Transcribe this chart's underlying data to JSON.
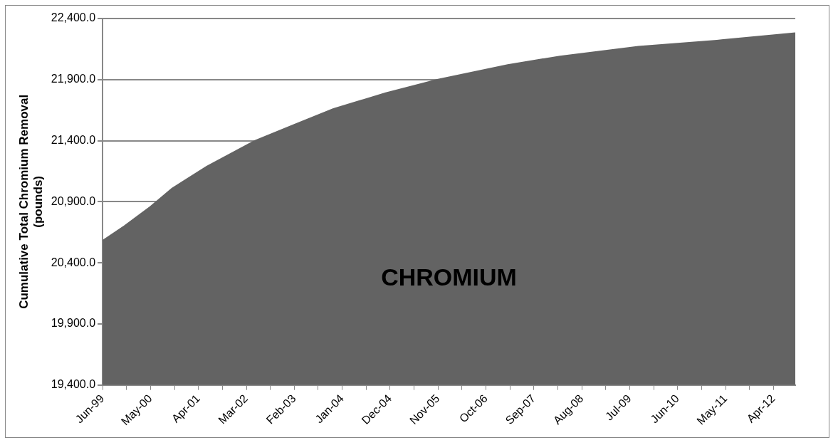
{
  "chart_data": {
    "type": "area",
    "ylabel": "Cumulative Total Chromium Removal\n(pounds)",
    "x": [
      "1999-06",
      "1999-11",
      "2000-05",
      "2000-10",
      "2001-06",
      "2002-05",
      "2003-02",
      "2003-11",
      "2004-11",
      "2005-11",
      "2007-03",
      "2008-03",
      "2009-09",
      "2011-03",
      "2012-09"
    ],
    "series": [
      {
        "name": "CHROMIUM",
        "color": "#636363",
        "values": [
          20580,
          20700,
          20860,
          21010,
          21190,
          21400,
          21530,
          21660,
          21790,
          21900,
          22020,
          22090,
          22170,
          22220,
          22280
        ]
      }
    ],
    "xlim": [
      "1999-06",
      "2012-09"
    ],
    "xticks": [
      {
        "value": "1999-06",
        "label": "Jun-99"
      },
      {
        "value": "1999-11-16",
        "label": null
      },
      {
        "value": "2000-05",
        "label": "May-00"
      },
      {
        "value": "2000-10-16",
        "label": null
      },
      {
        "value": "2001-04",
        "label": "Apr-01"
      },
      {
        "value": "2001-09-16",
        "label": null
      },
      {
        "value": "2002-03",
        "label": "Mar-02"
      },
      {
        "value": "2002-08-16",
        "label": null
      },
      {
        "value": "2003-02",
        "label": "Feb-03"
      },
      {
        "value": "2003-07-16",
        "label": null
      },
      {
        "value": "2004-01",
        "label": "Jan-04"
      },
      {
        "value": "2004-06-16",
        "label": null
      },
      {
        "value": "2004-12",
        "label": "Dec-04"
      },
      {
        "value": "2005-05-16",
        "label": null
      },
      {
        "value": "2005-11",
        "label": "Nov-05"
      },
      {
        "value": "2006-04-16",
        "label": null
      },
      {
        "value": "2006-10",
        "label": "Oct-06"
      },
      {
        "value": "2007-03-16",
        "label": null
      },
      {
        "value": "2007-09",
        "label": "Sep-07"
      },
      {
        "value": "2008-02-16",
        "label": null
      },
      {
        "value": "2008-08",
        "label": "Aug-08"
      },
      {
        "value": "2009-01-16",
        "label": null
      },
      {
        "value": "2009-07",
        "label": "Jul-09"
      },
      {
        "value": "2009-12-16",
        "label": null
      },
      {
        "value": "2010-06",
        "label": "Jun-10"
      },
      {
        "value": "2010-11-16",
        "label": null
      },
      {
        "value": "2011-05",
        "label": "May-11"
      },
      {
        "value": "2011-10-16",
        "label": null
      },
      {
        "value": "2012-04",
        "label": "Apr-12"
      }
    ],
    "ylim": [
      19400,
      22400
    ],
    "yticks": [
      {
        "value": 19400,
        "label": "19,400.0"
      },
      {
        "value": 19900,
        "label": "19,900.0"
      },
      {
        "value": 20400,
        "label": "20,400.0"
      },
      {
        "value": 20900,
        "label": "20,900.0"
      },
      {
        "value": 21400,
        "label": "21,400.0"
      },
      {
        "value": 21900,
        "label": "21,900.0"
      },
      {
        "value": 22400,
        "label": "22,400.0"
      }
    ],
    "grid": "y",
    "legend": false
  }
}
